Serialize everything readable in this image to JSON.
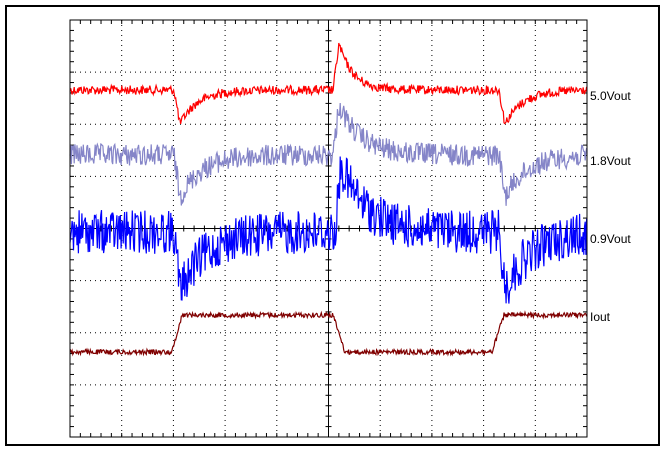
{
  "traces": [
    {
      "label": "5.0Vout",
      "color": "#ff0000"
    },
    {
      "label": "1.8Vout",
      "color": "#8585c8"
    },
    {
      "label": "0.9Vout",
      "color": "#0000ff"
    },
    {
      "label": "Iout",
      "color": "#800000"
    }
  ]
}
